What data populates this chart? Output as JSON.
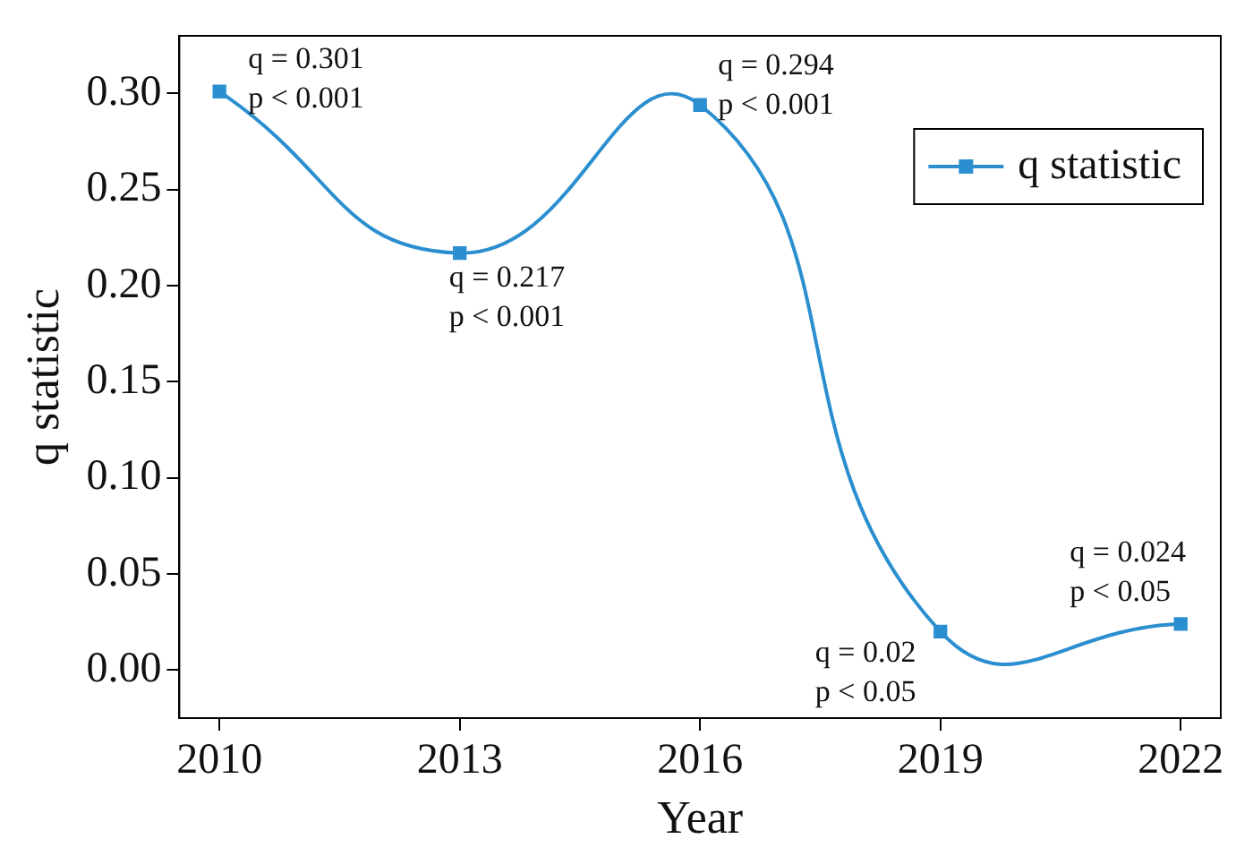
{
  "chart_data": {
    "type": "line",
    "xlabel": "Year",
    "ylabel": "q statistic",
    "x": [
      2010,
      2013,
      2016,
      2019,
      2022
    ],
    "series": [
      {
        "name": "q statistic",
        "color": "#2b8fcf",
        "values": [
          0.301,
          0.217,
          0.294,
          0.02,
          0.024
        ]
      }
    ],
    "xlim": [
      2009.5,
      2022.5
    ],
    "xticks": [
      2010,
      2013,
      2016,
      2019,
      2022
    ],
    "ylim": [
      -0.025,
      0.33
    ],
    "yticks": [
      {
        "value": 0,
        "label": "0.00"
      },
      0.05,
      {
        "value": 0.1,
        "label": "0.10"
      },
      0.15,
      {
        "value": 0.2,
        "label": "0.20"
      },
      0.25,
      {
        "value": 0.3,
        "label": "0.30"
      }
    ],
    "grid": false,
    "legend": "top right",
    "marker": "square",
    "line_style": "solid",
    "annotations": [
      {
        "text": "q = 0.301\np < 0.001",
        "x": 2010,
        "y": 0.301
      },
      {
        "text": "q = 0.217\np < 0.001",
        "x": 2013,
        "y": 0.217
      },
      {
        "text": "q = 0.294\np < 0.001",
        "x": 2016,
        "y": 0.294
      },
      {
        "text": "q = 0.02\np < 0.05",
        "x": 2019,
        "y": 0.02
      },
      {
        "text": "q = 0.024\np < 0.05",
        "x": 2022,
        "y": 0.024
      }
    ]
  }
}
